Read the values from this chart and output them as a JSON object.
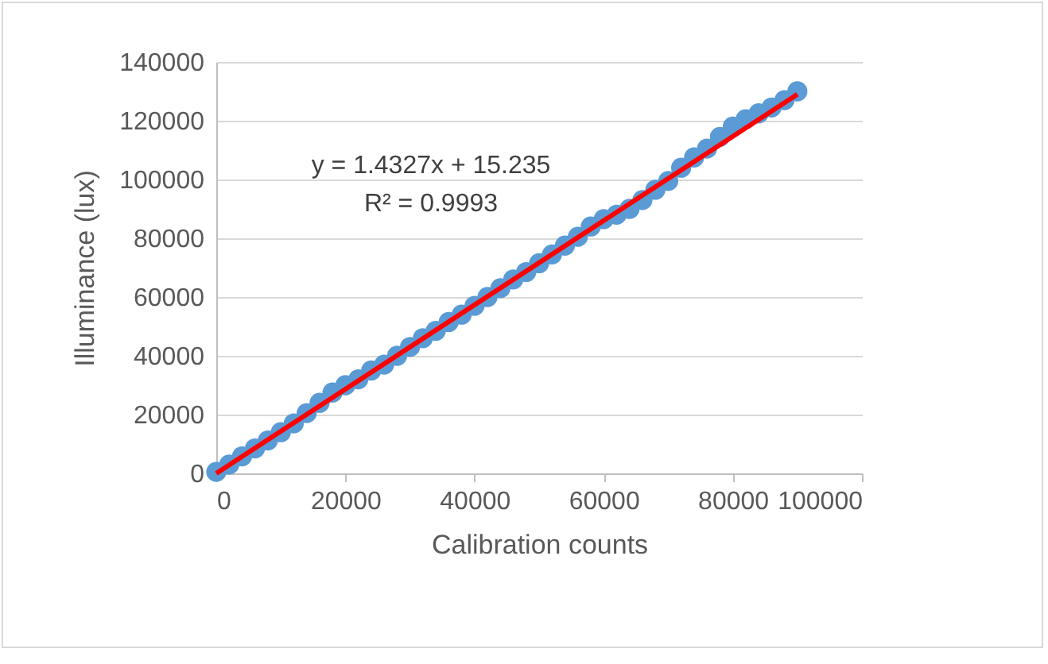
{
  "chart_data": {
    "type": "scatter",
    "xlabel": "Calibration counts",
    "ylabel": "Illuminance (lux)",
    "annotations": [
      "y = 1.4327x + 15.235",
      "R² = 0.9993"
    ],
    "xlim": [
      0,
      100000
    ],
    "xticks": [
      0,
      20000,
      40000,
      60000,
      80000,
      100000
    ],
    "ylim": [
      0,
      140000
    ],
    "yticks": [
      0,
      20000,
      40000,
      60000,
      80000,
      100000,
      120000,
      140000
    ],
    "grid": "y",
    "series": [
      {
        "color": "#5b9bd5",
        "marker": "circle",
        "x": [
          0,
          2000,
          4000,
          6000,
          8000,
          10000,
          12000,
          14000,
          16000,
          18000,
          20000,
          22000,
          24000,
          26000,
          28000,
          30000,
          32000,
          34000,
          36000,
          38000,
          40000,
          42000,
          44000,
          46000,
          48000,
          50000,
          52000,
          54000,
          56000,
          58000,
          60000,
          62000,
          64000,
          66000,
          68000,
          70000,
          72000,
          74000,
          76000,
          78000,
          80000,
          82000,
          84000,
          86000,
          88000,
          90000
        ],
        "values": [
          500,
          3000,
          5800,
          8500,
          11200,
          14000,
          17000,
          20500,
          24000,
          27500,
          30000,
          32000,
          35000,
          37000,
          40000,
          43000,
          46000,
          48500,
          51500,
          54000,
          57000,
          60000,
          63000,
          66000,
          68500,
          71500,
          74500,
          77500,
          80500,
          84000,
          86500,
          88000,
          90000,
          93000,
          96500,
          99500,
          104000,
          107500,
          110500,
          114500,
          118000,
          120500,
          122500,
          124500,
          127000,
          130000
        ]
      },
      {
        "type": "line",
        "color": "#ff0000",
        "line_style": "solid",
        "x": [
          0,
          90000
        ],
        "values": [
          0,
          129000
        ]
      }
    ]
  }
}
